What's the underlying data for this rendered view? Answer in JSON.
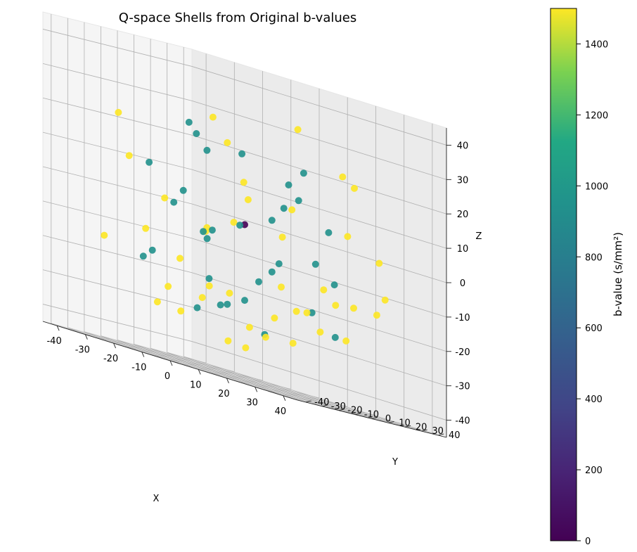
{
  "chart_data": {
    "type": "scatter",
    "projection": "3d",
    "title": "Q-space Shells from Original b-values",
    "xlabel": "X",
    "ylabel": "Y",
    "zlabel": "Z",
    "xlim": [
      -45,
      45
    ],
    "ylim": [
      -45,
      45
    ],
    "zlim": [
      -45,
      45
    ],
    "xticks": [
      -40,
      -30,
      -20,
      -10,
      0,
      10,
      20,
      30,
      40
    ],
    "yticks": [
      -40,
      -30,
      -20,
      -10,
      0,
      10,
      20,
      30,
      40
    ],
    "zticks": [
      -40,
      -30,
      -20,
      -10,
      0,
      10,
      20,
      30,
      40
    ],
    "grid": true,
    "colormap": "viridis",
    "colorbar": {
      "label": "b-value (s/mm²)",
      "min": 0,
      "max": 1500,
      "ticks": [
        0,
        200,
        400,
        600,
        800,
        1000,
        1200,
        1400
      ]
    },
    "series": [
      {
        "b_value": 0,
        "color": "#440154",
        "points": [
          [
            0,
            0,
            0
          ]
        ]
      },
      {
        "b_value": 750,
        "color": "#21918c",
        "points": [
          [
            -20,
            5,
            22
          ],
          [
            -15,
            -8,
            25
          ],
          [
            -8,
            12,
            20
          ],
          [
            5,
            18,
            15
          ],
          [
            15,
            10,
            20
          ],
          [
            22,
            -5,
            12
          ],
          [
            25,
            8,
            5
          ],
          [
            -25,
            -15,
            10
          ],
          [
            -28,
            5,
            0
          ],
          [
            -22,
            18,
            -5
          ],
          [
            -10,
            -20,
            5
          ],
          [
            0,
            -25,
            -5
          ],
          [
            10,
            -20,
            0
          ],
          [
            18,
            -10,
            -8
          ],
          [
            28,
            -5,
            -5
          ],
          [
            20,
            20,
            -10
          ],
          [
            -5,
            25,
            -12
          ],
          [
            -18,
            -25,
            -15
          ],
          [
            -30,
            -10,
            -18
          ],
          [
            5,
            -30,
            -18
          ],
          [
            15,
            15,
            -20
          ],
          [
            25,
            12,
            -25
          ],
          [
            -12,
            10,
            -25
          ],
          [
            0,
            0,
            -22
          ],
          [
            -8,
            -15,
            -28
          ],
          [
            10,
            -5,
            -30
          ],
          [
            -5,
            25,
            3
          ],
          [
            8,
            10,
            8
          ],
          [
            -18,
            8,
            18
          ],
          [
            12,
            -12,
            -15
          ],
          [
            -25,
            20,
            -8
          ],
          [
            2,
            -18,
            -25
          ]
        ]
      },
      {
        "b_value": 1500,
        "color": "#fde725",
        "points": [
          [
            10,
            15,
            32
          ],
          [
            -20,
            15,
            28
          ],
          [
            20,
            25,
            22
          ],
          [
            30,
            15,
            20
          ],
          [
            -30,
            -25,
            22
          ],
          [
            -35,
            -10,
            10
          ],
          [
            -40,
            20,
            0
          ],
          [
            -35,
            0,
            -10
          ],
          [
            -35,
            -25,
            -15
          ],
          [
            -30,
            5,
            -25
          ],
          [
            -25,
            -10,
            -30
          ],
          [
            -20,
            25,
            -22
          ],
          [
            -10,
            20,
            -30
          ],
          [
            -15,
            0,
            -25
          ],
          [
            0,
            -10,
            -35
          ],
          [
            15,
            -25,
            -35
          ],
          [
            25,
            -30,
            -30
          ],
          [
            20,
            -5,
            -30
          ],
          [
            30,
            -20,
            -20
          ],
          [
            38,
            -10,
            -15
          ],
          [
            35,
            25,
            -10
          ],
          [
            30,
            30,
            0
          ],
          [
            20,
            28,
            5
          ],
          [
            5,
            20,
            8
          ],
          [
            -5,
            8,
            12
          ],
          [
            -12,
            10,
            22
          ],
          [
            10,
            -15,
            8
          ],
          [
            18,
            -8,
            0
          ],
          [
            25,
            5,
            -12
          ],
          [
            28,
            18,
            -15
          ],
          [
            15,
            20,
            -25
          ],
          [
            0,
            18,
            -25
          ],
          [
            -5,
            -15,
            -5
          ],
          [
            10,
            5,
            -15
          ],
          [
            -10,
            -22,
            -15
          ],
          [
            -5,
            -30,
            -30
          ],
          [
            8,
            -35,
            -20
          ],
          [
            22,
            0,
            -20
          ],
          [
            30,
            10,
            -25
          ],
          [
            35,
            20,
            -15
          ],
          [
            -28,
            25,
            -5
          ],
          [
            2,
            -10,
            0
          ]
        ]
      }
    ]
  }
}
